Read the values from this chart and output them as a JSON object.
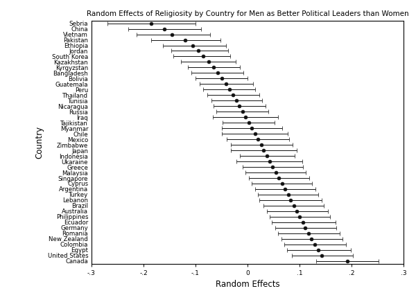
{
  "title": "Random Effects of Religiosity by Country for Men as Better Political Leaders than Women",
  "xlabel": "Random Effects",
  "ylabel": "Country",
  "countries": [
    "Sebria",
    "China",
    "Vietnam",
    "Pakistan",
    "Ethiopia",
    "Jordan",
    "South Korea",
    "Kazakhstan",
    "Kyrgyzstan",
    "Bangladesh",
    "Bolivia",
    "Guatemala",
    "Peru",
    "Thailand",
    "Tunisia",
    "Nicaragua",
    "Russia",
    "Iraq",
    "Tajikistan",
    "Myanmar",
    "Chile",
    "Mexico",
    "Zimbabwe",
    "Japan",
    "Indonesia",
    "Ukaraine",
    "Greece",
    "Malaysia",
    "Singapore",
    "Cyprus",
    "Argentina",
    "Turkey",
    "Lebanon",
    "Brazil",
    "Australia",
    "Philippines",
    "Ecuador",
    "Germany",
    "Romania",
    "New Zealand",
    "Colombia",
    "Egypt",
    "United States",
    "Canada"
  ],
  "estimates": [
    -0.185,
    -0.16,
    -0.145,
    -0.12,
    -0.105,
    -0.095,
    -0.085,
    -0.075,
    -0.065,
    -0.058,
    -0.05,
    -0.042,
    -0.035,
    -0.028,
    -0.022,
    -0.016,
    -0.01,
    -0.004,
    0.002,
    0.008,
    0.014,
    0.02,
    0.026,
    0.031,
    0.037,
    0.042,
    0.048,
    0.054,
    0.06,
    0.066,
    0.072,
    0.078,
    0.083,
    0.089,
    0.095,
    0.1,
    0.106,
    0.111,
    0.117,
    0.123,
    0.129,
    0.136,
    0.143,
    0.192
  ],
  "lower_err": [
    0.085,
    0.07,
    0.068,
    0.065,
    0.058,
    0.052,
    0.058,
    0.053,
    0.05,
    0.05,
    0.05,
    0.05,
    0.05,
    0.05,
    0.048,
    0.05,
    0.05,
    0.063,
    0.05,
    0.058,
    0.063,
    0.06,
    0.058,
    0.063,
    0.052,
    0.063,
    0.058,
    0.058,
    0.058,
    0.058,
    0.058,
    0.058,
    0.06,
    0.058,
    0.058,
    0.058,
    0.06,
    0.058,
    0.058,
    0.058,
    0.058,
    0.06,
    0.058,
    0.06
  ],
  "upper_err": [
    0.085,
    0.07,
    0.073,
    0.068,
    0.063,
    0.058,
    0.052,
    0.052,
    0.05,
    0.05,
    0.05,
    0.052,
    0.05,
    0.05,
    0.05,
    0.05,
    0.05,
    0.063,
    0.05,
    0.058,
    0.063,
    0.06,
    0.06,
    0.063,
    0.054,
    0.063,
    0.058,
    0.058,
    0.058,
    0.058,
    0.058,
    0.058,
    0.06,
    0.058,
    0.06,
    0.058,
    0.063,
    0.06,
    0.06,
    0.06,
    0.06,
    0.063,
    0.06,
    0.06
  ],
  "xlim": [
    -0.3,
    0.3
  ],
  "xticks": [
    -0.3,
    -0.2,
    -0.1,
    0.0,
    0.1,
    0.2,
    0.3
  ],
  "xtick_labels": [
    "-.3",
    "-.2",
    "-.1",
    "0",
    ".1",
    ".2",
    ".3"
  ],
  "point_color": "#111111",
  "line_color": "#111111",
  "bg_color": "#ffffff",
  "title_fontsize": 7.5,
  "label_fontsize": 8.5,
  "tick_fontsize": 6.5,
  "ytick_fontsize": 6.2
}
